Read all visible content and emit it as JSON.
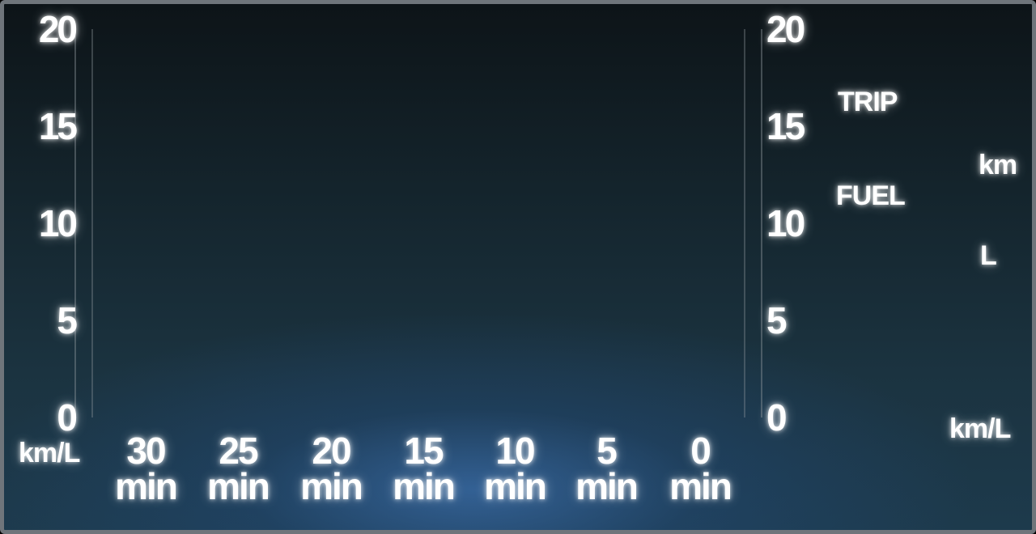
{
  "chart_data": {
    "type": "bar",
    "title": "",
    "ylabel": "km/L",
    "y2label": "km/L",
    "ylim": [
      0,
      20
    ],
    "y_ticks": [
      "0",
      "5",
      "10",
      "15",
      "20"
    ],
    "x_ticks": [
      {
        "value": "30",
        "unit": "min"
      },
      {
        "value": "25",
        "unit": "min"
      },
      {
        "value": "20",
        "unit": "min"
      },
      {
        "value": "15",
        "unit": "min"
      },
      {
        "value": "10",
        "unit": "min"
      },
      {
        "value": "5",
        "unit": "min"
      },
      {
        "value": "0",
        "unit": "min"
      }
    ],
    "values": [],
    "grid": true
  },
  "panel": {
    "trip_label": "TRIP",
    "trip_unit": "km",
    "fuel_label": "FUEL",
    "fuel_unit": "L",
    "avg_unit": "km/L"
  },
  "colors": {
    "gridline": "#c9ced2",
    "text": "#ffffff"
  }
}
